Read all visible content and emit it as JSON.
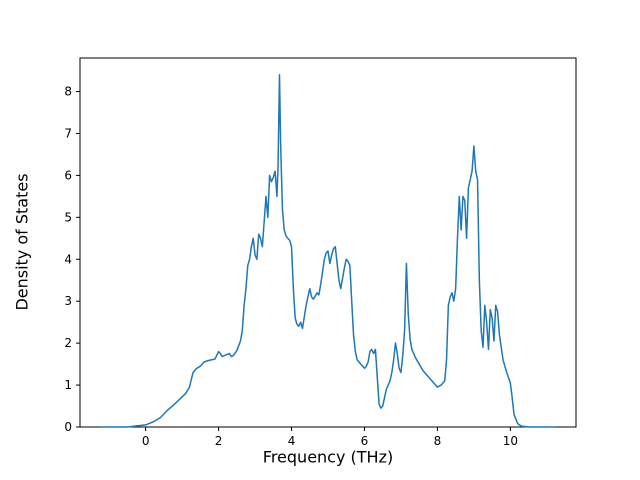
{
  "chart_data": {
    "type": "line",
    "title": "",
    "xlabel": "Frequency (THz)",
    "ylabel": "Density of States",
    "xlim": [
      -1.8,
      11.8
    ],
    "ylim": [
      0,
      8.8
    ],
    "xticks": [
      0,
      2,
      4,
      6,
      8,
      10
    ],
    "yticks": [
      0,
      1,
      2,
      3,
      4,
      5,
      6,
      7,
      8
    ],
    "grid": false,
    "line_color": "#1f77b4",
    "series": [
      {
        "name": "Density of States",
        "x": [
          -1.2,
          -0.5,
          0,
          0.2,
          0.4,
          0.6,
          0.8,
          1.0,
          1.1,
          1.2,
          1.3,
          1.4,
          1.5,
          1.6,
          1.7,
          1.8,
          1.9,
          2.0,
          2.05,
          2.1,
          2.2,
          2.3,
          2.35,
          2.4,
          2.5,
          2.6,
          2.65,
          2.7,
          2.75,
          2.8,
          2.85,
          2.9,
          2.95,
          3.0,
          3.05,
          3.1,
          3.15,
          3.2,
          3.25,
          3.3,
          3.35,
          3.4,
          3.45,
          3.5,
          3.55,
          3.6,
          3.63,
          3.67,
          3.7,
          3.75,
          3.8,
          3.85,
          3.9,
          3.95,
          4.0,
          4.05,
          4.1,
          4.15,
          4.2,
          4.25,
          4.3,
          4.4,
          4.5,
          4.55,
          4.6,
          4.7,
          4.75,
          4.8,
          4.9,
          4.95,
          5.0,
          5.05,
          5.1,
          5.15,
          5.2,
          5.25,
          5.3,
          5.35,
          5.4,
          5.45,
          5.5,
          5.55,
          5.6,
          5.65,
          5.7,
          5.75,
          5.8,
          5.9,
          6.0,
          6.05,
          6.1,
          6.15,
          6.2,
          6.25,
          6.3,
          6.35,
          6.4,
          6.45,
          6.5,
          6.6,
          6.7,
          6.75,
          6.8,
          6.85,
          6.9,
          6.95,
          7.0,
          7.05,
          7.1,
          7.15,
          7.2,
          7.25,
          7.3,
          7.4,
          7.5,
          7.6,
          7.7,
          7.8,
          7.9,
          8.0,
          8.1,
          8.2,
          8.25,
          8.3,
          8.35,
          8.4,
          8.45,
          8.5,
          8.55,
          8.6,
          8.65,
          8.7,
          8.75,
          8.8,
          8.85,
          8.9,
          8.95,
          9.0,
          9.05,
          9.1,
          9.15,
          9.2,
          9.25,
          9.3,
          9.35,
          9.4,
          9.45,
          9.5,
          9.55,
          9.6,
          9.65,
          9.7,
          9.75,
          9.8,
          9.9,
          10.0,
          10.05,
          10.1,
          10.2,
          10.3,
          10.5,
          11.2
        ],
        "y": [
          0,
          0,
          0.05,
          0.12,
          0.22,
          0.4,
          0.55,
          0.72,
          0.8,
          0.95,
          1.3,
          1.4,
          1.45,
          1.55,
          1.58,
          1.6,
          1.62,
          1.8,
          1.75,
          1.68,
          1.72,
          1.75,
          1.68,
          1.7,
          1.82,
          2.05,
          2.3,
          2.9,
          3.3,
          3.85,
          4.0,
          4.3,
          4.5,
          4.1,
          4.0,
          4.6,
          4.5,
          4.3,
          4.9,
          5.5,
          5.0,
          6.0,
          5.85,
          5.95,
          6.1,
          5.5,
          6.2,
          8.4,
          6.8,
          5.2,
          4.7,
          4.55,
          4.5,
          4.45,
          4.3,
          3.3,
          2.6,
          2.45,
          2.4,
          2.5,
          2.35,
          2.9,
          3.3,
          3.1,
          3.05,
          3.2,
          3.15,
          3.4,
          4.0,
          4.15,
          4.2,
          3.9,
          4.1,
          4.25,
          4.3,
          3.9,
          3.5,
          3.3,
          3.55,
          3.8,
          4.0,
          3.95,
          3.85,
          3.0,
          2.2,
          1.8,
          1.6,
          1.5,
          1.4,
          1.45,
          1.55,
          1.8,
          1.85,
          1.75,
          1.85,
          1.2,
          0.55,
          0.45,
          0.5,
          0.9,
          1.1,
          1.3,
          1.6,
          2.0,
          1.75,
          1.4,
          1.3,
          1.7,
          2.3,
          3.9,
          2.7,
          2.1,
          1.85,
          1.65,
          1.5,
          1.35,
          1.25,
          1.15,
          1.05,
          0.95,
          1.0,
          1.1,
          1.6,
          2.9,
          3.1,
          3.2,
          3.0,
          3.3,
          4.5,
          5.5,
          4.7,
          5.5,
          5.4,
          4.5,
          5.7,
          5.9,
          6.1,
          6.7,
          6.1,
          5.9,
          3.5,
          2.3,
          1.9,
          2.9,
          2.5,
          1.85,
          2.8,
          2.6,
          2.05,
          2.9,
          2.75,
          2.2,
          1.9,
          1.6,
          1.3,
          1.05,
          0.7,
          0.3,
          0.08,
          0.02,
          0,
          0
        ]
      }
    ]
  }
}
